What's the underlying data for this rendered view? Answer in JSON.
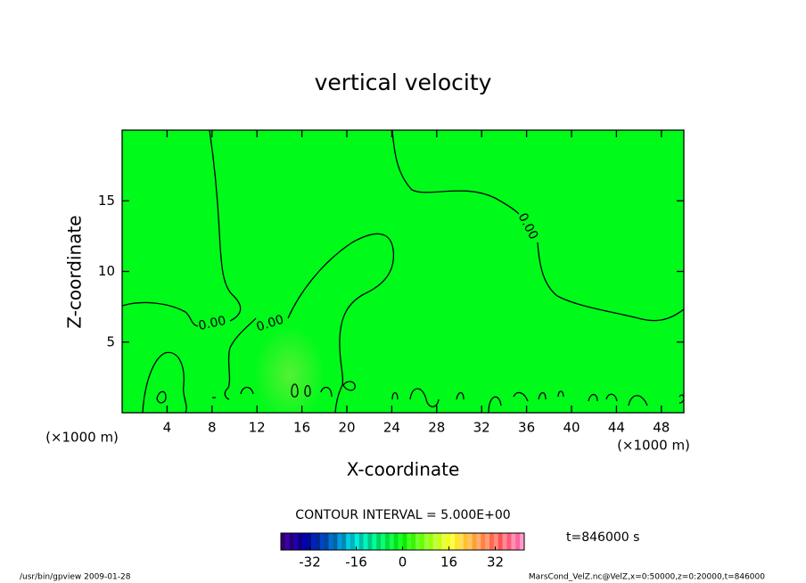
{
  "chart_data": {
    "type": "contour",
    "title": "vertical velocity",
    "x_label": "X-coordinate",
    "y_label": "Z-coordinate",
    "x_unit": "(×1000 m)",
    "xlim": [
      0,
      50
    ],
    "xticks": [
      4,
      8,
      12,
      16,
      20,
      24,
      28,
      32,
      36,
      40,
      44,
      48
    ],
    "ylim": [
      0,
      20
    ],
    "yticks": [
      5,
      10,
      15
    ],
    "field_color": "#00fa1a",
    "contour_labels": [
      "0.00",
      "0.00",
      "0.00"
    ],
    "contour_interval": "CONTOUR INTERVAL = 5.000E+00",
    "time_label": "t=846000 s",
    "clim": [
      -42,
      42
    ],
    "cticks": [
      -32,
      -16,
      0,
      16,
      32
    ],
    "footer_left": "/usr/bin/gpview  2009-01-28",
    "footer_right": "MarsCond_VelZ.nc@VelZ,x=0:50000,z=0:20000,t=846000"
  }
}
